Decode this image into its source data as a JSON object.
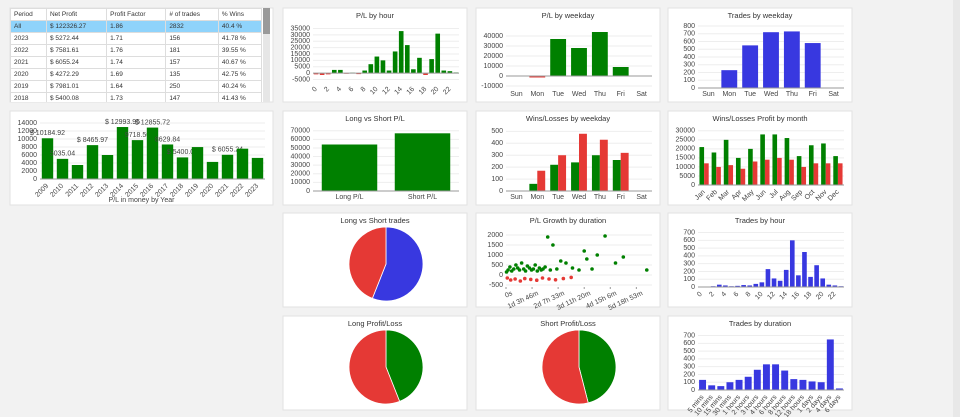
{
  "table": {
    "columns": [
      "Period",
      "Net Profit",
      "Profit Factor",
      "# of trades",
      "% Wins"
    ],
    "rows": [
      [
        "All",
        "$ 122326.27",
        "1.86",
        "2832",
        "40.4 %"
      ],
      [
        "2023",
        "$ 5272.44",
        "1.71",
        "156",
        "41.78 %"
      ],
      [
        "2022",
        "$ 7581.61",
        "1.76",
        "181",
        "39.55 %"
      ],
      [
        "2021",
        "$ 6055.24",
        "1.74",
        "157",
        "40.67 %"
      ],
      [
        "2020",
        "$ 4272.29",
        "1.69",
        "135",
        "42.75 %"
      ],
      [
        "2019",
        "$ 7981.01",
        "1.64",
        "250",
        "40.24 %"
      ],
      [
        "2018",
        "$ 5400.08",
        "1.73",
        "147",
        "41.43 %"
      ]
    ]
  },
  "chart_data": [
    {
      "type": "bar",
      "title": "P/L by hour",
      "categories": [
        0,
        null,
        2,
        null,
        4,
        null,
        6,
        null,
        8,
        null,
        10,
        null,
        12,
        null,
        14,
        null,
        16,
        null,
        18,
        null,
        20,
        null,
        22,
        null
      ],
      "values": [
        -1000,
        -1500,
        -1000,
        2500,
        2500,
        -500,
        300,
        -800,
        2000,
        7000,
        13000,
        10000,
        2000,
        17000,
        33000,
        22000,
        3000,
        12000,
        -1500,
        11000,
        31000,
        2000,
        1500,
        500
      ],
      "color": "#008000",
      "negative_color": "#e53935",
      "ylim": [
        -7000,
        37000
      ],
      "yticks": [
        -5000,
        0,
        5000,
        10000,
        15000,
        20000,
        25000,
        30000,
        35000
      ],
      "grid": true
    },
    {
      "type": "bar",
      "title": "P/L by weekday",
      "categories": [
        "Sun",
        "Mon",
        "Tue",
        "Wed",
        "Thu",
        "Fri",
        "Sat"
      ],
      "values": [
        0,
        -1500,
        37000,
        28000,
        44000,
        9000,
        0
      ],
      "color": "#008000",
      "negative_color": "#e53935",
      "ylim": [
        -12000,
        50000
      ],
      "yticks": [
        -10000,
        0,
        10000,
        20000,
        30000,
        40000
      ],
      "grid": true
    },
    {
      "type": "bar",
      "title": "Trades by weekday",
      "categories": [
        "Sun",
        "Mon",
        "Tue",
        "Wed",
        "Thu",
        "Fri",
        "Sat"
      ],
      "values": [
        0,
        230,
        550,
        720,
        730,
        580,
        0
      ],
      "color": "#3838e0",
      "ylim": [
        0,
        800
      ],
      "yticks": [
        0,
        100,
        200,
        300,
        400,
        500,
        600,
        700,
        800
      ],
      "grid": true
    },
    {
      "type": "bar",
      "xlabel": "P/L in money by Year",
      "categories": [
        2009,
        2010,
        2011,
        2012,
        2013,
        2014,
        2015,
        2016,
        2017,
        2018,
        2019,
        2020,
        2021,
        2022,
        2023
      ],
      "values": [
        10184.92,
        5035.04,
        3500,
        8465.97,
        6000,
        12993.95,
        9718.5,
        12855.72,
        8629.84,
        5400.08,
        7981.01,
        4272.29,
        6055.24,
        7581.61,
        5272.44
      ],
      "value_labels": [
        "$ 10184.92",
        "5035.04",
        null,
        "$ 8465.97",
        null,
        "$ 12993.95",
        "9718.50",
        "$ 12855.72",
        "8629.84",
        "$ 5400.08",
        null,
        null,
        "$ 6055.24",
        null,
        null
      ],
      "color": "#008000",
      "ylim": [
        0,
        14000
      ],
      "yticks": [
        0,
        2000,
        4000,
        6000,
        8000,
        10000,
        12000,
        14000
      ],
      "grid": true
    },
    {
      "type": "bar",
      "title": "Long vs Short P/L",
      "categories": [
        "Long P/L",
        "Short P/L"
      ],
      "values": [
        54000,
        67000
      ],
      "color": "#008000",
      "ylim": [
        0,
        72000
      ],
      "yticks": [
        0,
        10000,
        20000,
        30000,
        40000,
        50000,
        60000,
        70000
      ],
      "grid": true
    },
    {
      "type": "bar",
      "title": "Wins/Losses by weekday",
      "categories": [
        "Sun",
        "Mon",
        "Tue",
        "Wed",
        "Thu",
        "Fri",
        "Sat"
      ],
      "series": [
        {
          "color": "#008000",
          "values": [
            0,
            60,
            220,
            240,
            300,
            260,
            0
          ]
        },
        {
          "color": "#e53935",
          "values": [
            0,
            170,
            300,
            480,
            430,
            320,
            0
          ]
        }
      ],
      "ylim": [
        0,
        520
      ],
      "yticks": [
        0,
        100,
        200,
        300,
        400,
        500
      ],
      "grid": true
    },
    {
      "type": "bar",
      "title": "Wins/Losses Profit by month",
      "categories": [
        "Jan",
        "Feb",
        "Mar",
        "Apr",
        "May",
        "Jun",
        "Jul",
        "Aug",
        "Sep",
        "Oct",
        "Nov",
        "Dec"
      ],
      "series": [
        {
          "color": "#008000",
          "values": [
            21000,
            18000,
            25000,
            15000,
            20000,
            28000,
            28000,
            26000,
            16000,
            22000,
            23000,
            16000
          ]
        },
        {
          "color": "#e53935",
          "values": [
            12000,
            10000,
            11000,
            9000,
            13000,
            14000,
            15000,
            14000,
            10000,
            12000,
            12000,
            12000
          ]
        }
      ],
      "ylim": [
        0,
        31000
      ],
      "yticks": [
        0,
        5000,
        10000,
        15000,
        20000,
        25000,
        30000
      ],
      "grid": true
    },
    {
      "type": "pie",
      "title": "Long vs Short trades",
      "values": [
        56,
        44
      ],
      "colors": [
        "#3838e0",
        "#e53935"
      ]
    },
    {
      "type": "scatter",
      "title": "P/L Growth by duration",
      "series": [
        {
          "color": "#008000",
          "x": [
            2000,
            8000,
            15000,
            22000,
            30000,
            38000,
            45000,
            52000,
            60000,
            68000,
            75000,
            82000,
            90000,
            98000,
            105000,
            112000,
            120000,
            128000,
            135000,
            142000,
            150000,
            160000,
            170000,
            180000,
            195000,
            210000,
            230000,
            255000,
            280000,
            300000,
            310000,
            330000,
            350000,
            380000,
            420000,
            450000,
            540000
          ],
          "values": [
            150,
            250,
            400,
            200,
            300,
            500,
            350,
            250,
            600,
            300,
            200,
            450,
            350,
            250,
            300,
            500,
            200,
            350,
            250,
            300,
            400,
            1900,
            250,
            1500,
            300,
            700,
            600,
            350,
            250,
            1200,
            800,
            300,
            1000,
            1950,
            600,
            900,
            250
          ]
        },
        {
          "color": "#e53935",
          "x": [
            5000,
            18000,
            35000,
            55000,
            72000,
            95000,
            118000,
            140000,
            165000,
            190000,
            220000,
            250000
          ],
          "values": [
            -150,
            -250,
            -200,
            -300,
            -180,
            -220,
            -260,
            -150,
            -200,
            -240,
            -180,
            -120
          ]
        }
      ],
      "xlim": [
        0,
        560000
      ],
      "xticks": [
        {
          "value": 0,
          "label": "0s"
        },
        {
          "value": 100000,
          "label": "1d 3h 46m"
        },
        {
          "value": 200000,
          "label": "2d 7h 33m"
        },
        {
          "value": 300000,
          "label": "3d 11h 20m"
        },
        {
          "value": 400000,
          "label": "4d 15h 6m"
        },
        {
          "value": 500000,
          "label": "5d 18h 53m"
        }
      ],
      "ylim": [
        -600,
        2200
      ],
      "yticks": [
        -500,
        0,
        500,
        1000,
        1500,
        2000
      ],
      "grid": true
    },
    {
      "type": "bar",
      "title": "Trades by hour",
      "categories": [
        0,
        null,
        2,
        null,
        4,
        null,
        6,
        null,
        8,
        null,
        10,
        null,
        12,
        null,
        14,
        null,
        16,
        null,
        18,
        null,
        20,
        null,
        22,
        null
      ],
      "values": [
        5,
        5,
        10,
        30,
        20,
        10,
        15,
        25,
        20,
        40,
        60,
        230,
        110,
        80,
        220,
        600,
        150,
        450,
        130,
        280,
        110,
        30,
        20,
        10
      ],
      "color": "#3838e0",
      "ylim": [
        0,
        720
      ],
      "yticks": [
        0,
        100,
        200,
        300,
        400,
        500,
        600,
        700
      ],
      "grid": true
    },
    {
      "type": "pie",
      "title": "Long Profit/Loss",
      "values": [
        44,
        56
      ],
      "colors": [
        "#008000",
        "#e53935"
      ]
    },
    {
      "type": "pie",
      "title": "Short Profit/Loss",
      "values": [
        46,
        54
      ],
      "colors": [
        "#008000",
        "#e53935"
      ]
    },
    {
      "type": "bar",
      "title": "Trades by duration",
      "categories": [
        "5 mins",
        "10 mins",
        "15 mins",
        "30 mins",
        "1 hours",
        "2 hours",
        "3 hours",
        "4 hours",
        "6 hours",
        "8 hours",
        "12 hours",
        "18 hours",
        "1 days",
        "2 days",
        "4 days",
        "6 days"
      ],
      "values": [
        130,
        60,
        50,
        100,
        130,
        170,
        260,
        330,
        330,
        250,
        140,
        130,
        110,
        100,
        650,
        20
      ],
      "color": "#3838e0",
      "ylim": [
        0,
        720
      ],
      "yticks": [
        0,
        100,
        200,
        300,
        400,
        500,
        600,
        700
      ],
      "grid": true
    }
  ]
}
